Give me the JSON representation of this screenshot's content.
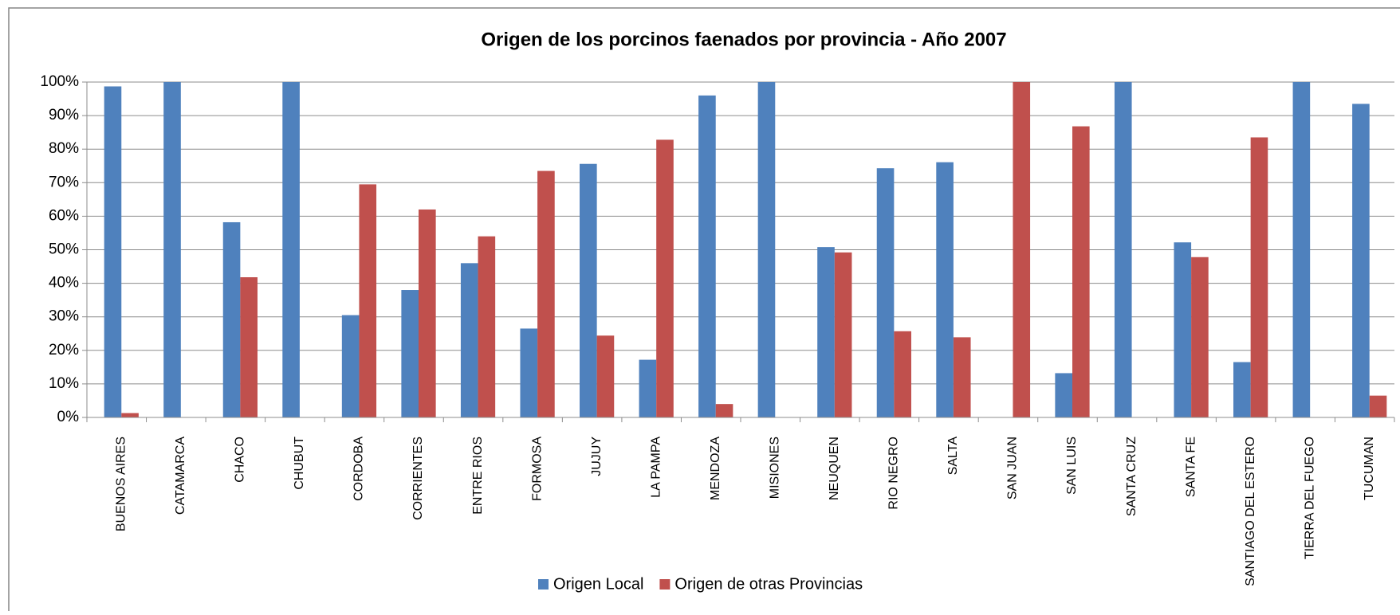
{
  "chart_data": {
    "type": "bar",
    "title": "Origen de los porcinos faenados por provincia - Año 2007",
    "categories": [
      "BUENOS AIRES",
      "CATAMARCA",
      "CHACO",
      "CHUBUT",
      "CORDOBA",
      "CORRIENTES",
      "ENTRE RIOS",
      "FORMOSA",
      "JUJUY",
      "LA PAMPA",
      "MENDOZA",
      "MISIONES",
      "NEUQUEN",
      "RIO NEGRO",
      "SALTA",
      "SAN JUAN",
      "SAN LUIS",
      "SANTA CRUZ",
      "SANTA FE",
      "SANTIAGO DEL ESTERO",
      "TIERRA DEL FUEGO",
      "TUCUMAN"
    ],
    "series": [
      {
        "name": "Origen Local",
        "color": "#4f81bd",
        "values": [
          98.7,
          100,
          58.2,
          100,
          30.5,
          38,
          46,
          26.5,
          75.6,
          17.2,
          96,
          100,
          50.8,
          74.3,
          76.1,
          0,
          13.2,
          100,
          52.2,
          16.5,
          100,
          93.5
        ]
      },
      {
        "name": "Origen de otras Provincias",
        "color": "#c0504d",
        "values": [
          1.3,
          0,
          41.8,
          0,
          69.5,
          62,
          54,
          73.5,
          24.4,
          82.8,
          4,
          0,
          49.2,
          25.7,
          23.9,
          100,
          86.8,
          0,
          47.8,
          83.5,
          0,
          6.5
        ]
      }
    ],
    "ylim": [
      0,
      100
    ],
    "yticks": [
      {
        "value": 0,
        "label": "0%"
      },
      {
        "value": 10,
        "label": "10%"
      },
      {
        "value": 20,
        "label": "20%"
      },
      {
        "value": 30,
        "label": "30%"
      },
      {
        "value": 40,
        "label": "40%"
      },
      {
        "value": 50,
        "label": "50%"
      },
      {
        "value": 60,
        "label": "60%"
      },
      {
        "value": 70,
        "label": "70%"
      },
      {
        "value": 80,
        "label": "80%"
      },
      {
        "value": 90,
        "label": "90%"
      },
      {
        "value": 100,
        "label": "100%"
      }
    ],
    "grid": true,
    "legend": "bottom"
  }
}
